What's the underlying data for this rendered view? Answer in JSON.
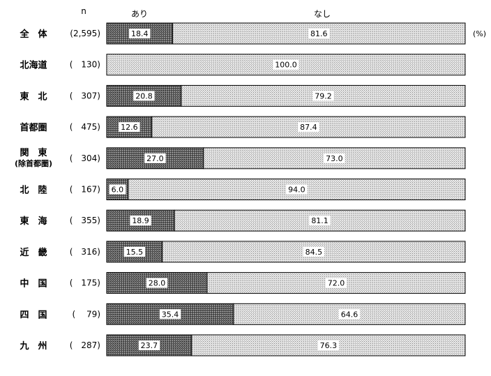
{
  "chart_data": {
    "type": "bar",
    "stacked": true,
    "orientation": "horizontal",
    "percent_100": true,
    "n_header": "n",
    "unit": "(%)",
    "series": [
      {
        "name": "あり",
        "color": "#555555",
        "values": [
          18.4,
          0.0,
          20.8,
          12.6,
          27.0,
          6.0,
          18.9,
          15.5,
          28.0,
          35.4,
          23.7
        ],
        "labels": [
          "18.4",
          "",
          "20.8",
          "12.6",
          "27.0",
          "6.0",
          "18.9",
          "15.5",
          "28.0",
          "35.4",
          "23.7"
        ]
      },
      {
        "name": "なし",
        "color": "#d6d6d6",
        "values": [
          81.6,
          100.0,
          79.2,
          87.4,
          73.0,
          94.0,
          81.1,
          84.5,
          72.0,
          64.6,
          76.3
        ],
        "labels": [
          "81.6",
          "100.0",
          "79.2",
          "87.4",
          "73.0",
          "94.0",
          "81.1",
          "84.5",
          "72.0",
          "64.6",
          "76.3"
        ]
      }
    ],
    "categories": [
      {
        "label": "全　体",
        "n": "(2,595)"
      },
      {
        "label": "北海道",
        "n": "(　130)"
      },
      {
        "label": "東　北",
        "n": "(　307)"
      },
      {
        "label": "首都圏",
        "n": "(　475)"
      },
      {
        "label": "関　東",
        "label2": "(除首都圏)",
        "n": "(　304)"
      },
      {
        "label": "北　陸",
        "n": "(　167)"
      },
      {
        "label": "東　海",
        "n": "(　355)"
      },
      {
        "label": "近　畿",
        "n": "(　316)"
      },
      {
        "label": "中　国",
        "n": "(　175)"
      },
      {
        "label": "四　国",
        "n": "(　 79)"
      },
      {
        "label": "九　州",
        "n": "(　287)"
      }
    ]
  }
}
